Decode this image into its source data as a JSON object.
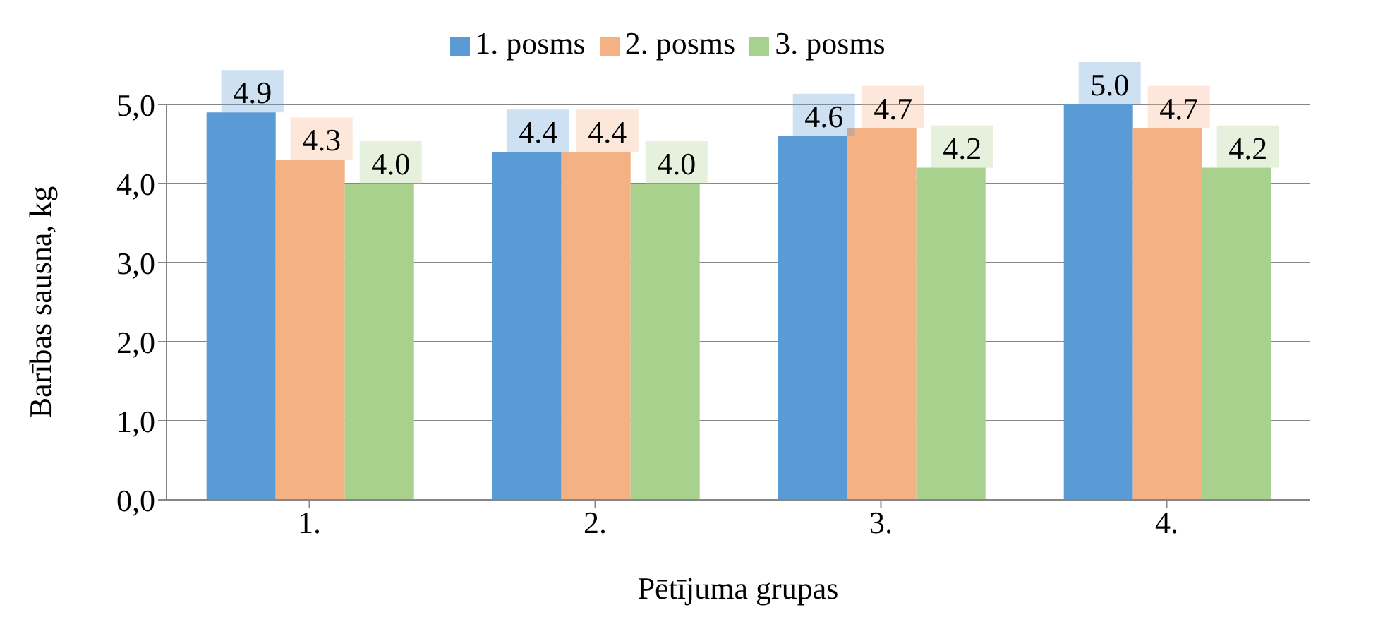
{
  "chart_data": {
    "type": "bar",
    "xlabel": "Pētījuma grupas",
    "ylabel": "Barības sausna, kg",
    "categories": [
      "1.",
      "2.",
      "3.",
      "4."
    ],
    "series": [
      {
        "name": "1. posms",
        "color": "#5b9bd5",
        "values": [
          4.9,
          4.4,
          4.6,
          5.0
        ],
        "value_labels": [
          "4.9",
          "4.4",
          "4.6",
          "5.0"
        ]
      },
      {
        "name": "2. posms",
        "color": "#f4b183",
        "values": [
          4.3,
          4.4,
          4.7,
          4.7
        ],
        "value_labels": [
          "4.3",
          "4.4",
          "4.7",
          "4.7"
        ]
      },
      {
        "name": "3. posms",
        "color": "#a9d18e",
        "values": [
          4.0,
          4.0,
          4.2,
          4.2
        ],
        "value_labels": [
          "4.0",
          "4.0",
          "4.2",
          "4.2"
        ]
      }
    ],
    "ylim": [
      0,
      5
    ],
    "yticks": [
      {
        "value": 0,
        "label": "0,0"
      },
      {
        "value": 1,
        "label": "1,0"
      },
      {
        "value": 2,
        "label": "2,0"
      },
      {
        "value": 3,
        "label": "3,0"
      },
      {
        "value": 4,
        "label": "4,0"
      },
      {
        "value": 5,
        "label": "5,0"
      }
    ],
    "grid": "y",
    "legend": "top"
  }
}
